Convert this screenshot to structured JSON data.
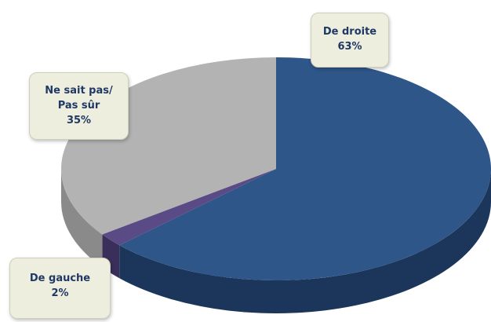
{
  "chart_data": {
    "type": "pie",
    "title": "",
    "slices": [
      {
        "label_lines": [
          "De droite"
        ],
        "value": 63,
        "value_label": "63%",
        "color": "#2f5689",
        "side_color": "#1c355a"
      },
      {
        "label_lines": [
          "De gauche"
        ],
        "value": 2,
        "value_label": "2%",
        "color": "#5a4a86",
        "side_color": "#3a2f5a"
      },
      {
        "label_lines": [
          "Ne sait pas/",
          "Pas sûr"
        ],
        "value": 35,
        "value_label": "35%",
        "color": "#b3b3b3",
        "side_color": "#8a8a8a"
      }
    ],
    "start_angle_deg": 0,
    "direction": "clockwise",
    "style": "3d-tilted",
    "legend": "none",
    "label_box_color": "#eeeedf",
    "label_text_color": "#1f3864"
  }
}
